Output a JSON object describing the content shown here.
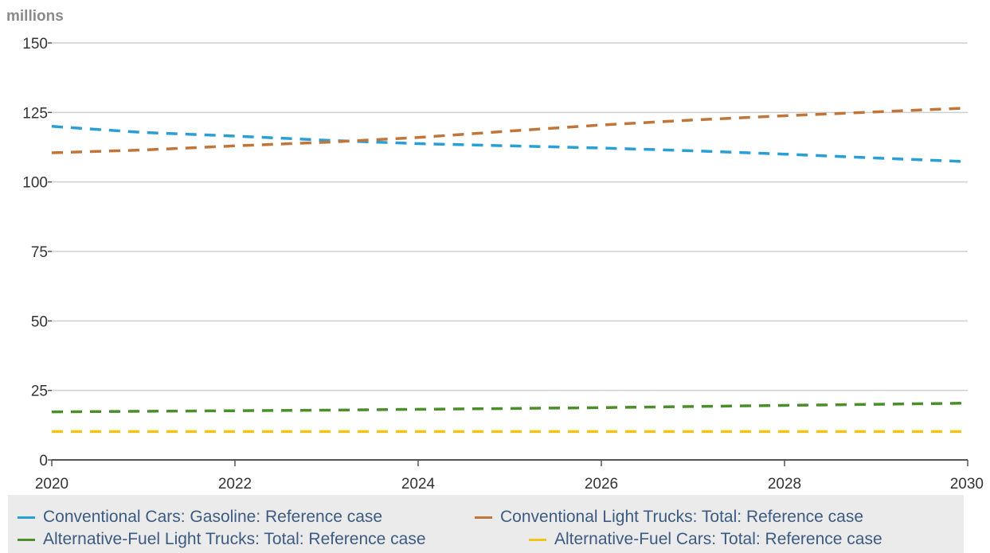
{
  "chart_data": {
    "type": "line",
    "unit_label": "millions",
    "x": [
      2020,
      2021,
      2022,
      2023,
      2024,
      2025,
      2026,
      2027,
      2028,
      2029,
      2030
    ],
    "x_ticks": [
      "2020",
      "2022",
      "2024",
      "2026",
      "2028",
      "2030"
    ],
    "y_ticks": [
      "0",
      "25",
      "50",
      "75",
      "100",
      "125",
      "150"
    ],
    "xlim": [
      2020,
      2030
    ],
    "ylim": [
      0,
      150
    ],
    "grid": true,
    "legend_position": "bottom",
    "line_style": "dashed",
    "series": [
      {
        "name": "Conventional Cars: Gasoline: Reference case",
        "color": "#2a9fd6",
        "values": [
          120,
          117.8,
          116.5,
          115,
          113.8,
          113,
          112.2,
          111.2,
          110,
          108.6,
          107.3
        ]
      },
      {
        "name": "Conventional Light Trucks: Total: Reference case",
        "color": "#c0763a",
        "values": [
          110.5,
          111.5,
          113,
          114.3,
          116,
          118.3,
          120.5,
          122.3,
          123.8,
          125.2,
          126.6
        ]
      },
      {
        "name": "Alternative-Fuel Light Trucks: Total: Reference case",
        "color": "#4a8f29",
        "values": [
          17.3,
          17.5,
          17.7,
          17.9,
          18.2,
          18.5,
          18.8,
          19.2,
          19.6,
          20,
          20.4
        ]
      },
      {
        "name": "Alternative-Fuel Cars: Total: Reference case",
        "color": "#f2c419",
        "values": [
          10.2,
          10.2,
          10.2,
          10.2,
          10.2,
          10.2,
          10.2,
          10.2,
          10.2,
          10.2,
          10.2
        ]
      }
    ]
  }
}
